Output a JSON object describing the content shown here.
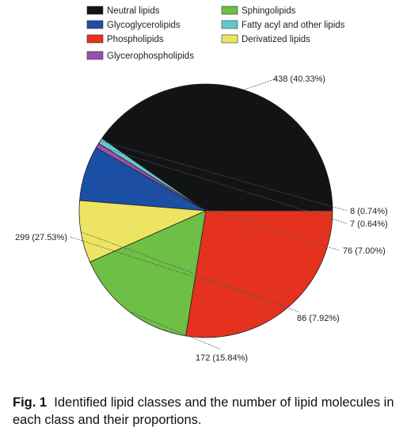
{
  "chart_data": {
    "type": "pie",
    "categories": [
      "Neutral lipids",
      "Glycoglycerolipids",
      "Phospholipids",
      "Glycerophospholipids",
      "Sphingolipids",
      "Fatty acyl and other lipids",
      "Derivatized lipids"
    ],
    "values": [
      438,
      76,
      299,
      7,
      172,
      8,
      86
    ],
    "percentages": [
      40.33,
      7.0,
      27.53,
      0.64,
      15.84,
      0.74,
      7.92
    ],
    "colors": [
      "#111315",
      "#1b4fa6",
      "#e5321e",
      "#9b4fae",
      "#6dbf45",
      "#62c8cc",
      "#ede463"
    ],
    "slice_order": [
      "Neutral lipids",
      "Fatty acyl and other lipids",
      "Glycerophospholipids",
      "Glycoglycerolipids",
      "Derivatized lipids",
      "Sphingolipids",
      "Phospholipids"
    ],
    "data_labels": {
      "Neutral lipids": "438 (40.33%)",
      "Fatty acyl and other lipids": "8 (0.74%)",
      "Glycerophospholipids": "7 (0.64%)",
      "Glycoglycerolipids": "76 (7.00%)",
      "Derivatized lipids": "86 (7.92%)",
      "Sphingolipids": "172 (15.84%)",
      "Phospholipids": "299 (27.53%)"
    },
    "legend_position": "top"
  },
  "caption": {
    "prefix": "Fig. 1",
    "text": "Identified lipid classes and the number of lipid molecules in each class and their proportions."
  }
}
